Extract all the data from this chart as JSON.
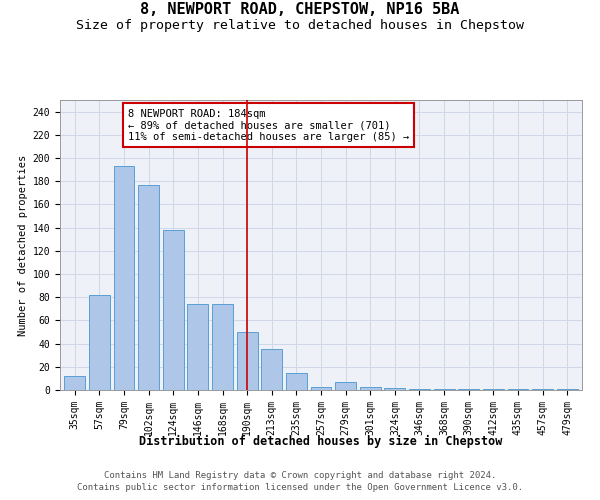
{
  "title": "8, NEWPORT ROAD, CHEPSTOW, NP16 5BA",
  "subtitle": "Size of property relative to detached houses in Chepstow",
  "xlabel": "Distribution of detached houses by size in Chepstow",
  "ylabel": "Number of detached properties",
  "categories": [
    "35sqm",
    "57sqm",
    "79sqm",
    "102sqm",
    "124sqm",
    "146sqm",
    "168sqm",
    "190sqm",
    "213sqm",
    "235sqm",
    "257sqm",
    "279sqm",
    "301sqm",
    "324sqm",
    "346sqm",
    "368sqm",
    "390sqm",
    "412sqm",
    "435sqm",
    "457sqm",
    "479sqm"
  ],
  "values": [
    12,
    82,
    193,
    177,
    138,
    74,
    74,
    50,
    35,
    15,
    3,
    7,
    3,
    2,
    1,
    1,
    1,
    1,
    1,
    1,
    1
  ],
  "bar_color": "#aec6e8",
  "bar_edgecolor": "#5a9fd4",
  "vline_x_index": 7,
  "vline_color": "#cc0000",
  "annotation_text": "8 NEWPORT ROAD: 184sqm\n← 89% of detached houses are smaller (701)\n11% of semi-detached houses are larger (85) →",
  "annotation_box_color": "#cc0000",
  "ylim": [
    0,
    250
  ],
  "yticks": [
    0,
    20,
    40,
    60,
    80,
    100,
    120,
    140,
    160,
    180,
    200,
    220,
    240
  ],
  "grid_color": "#d0d8e8",
  "bg_color": "#eef2f8",
  "footer_line1": "Contains HM Land Registry data © Crown copyright and database right 2024.",
  "footer_line2": "Contains public sector information licensed under the Open Government Licence v3.0.",
  "title_fontsize": 11,
  "subtitle_fontsize": 9.5,
  "xlabel_fontsize": 8.5,
  "ylabel_fontsize": 7.5,
  "tick_fontsize": 7,
  "annotation_fontsize": 7.5,
  "footer_fontsize": 6.5,
  "bar_width": 0.85
}
